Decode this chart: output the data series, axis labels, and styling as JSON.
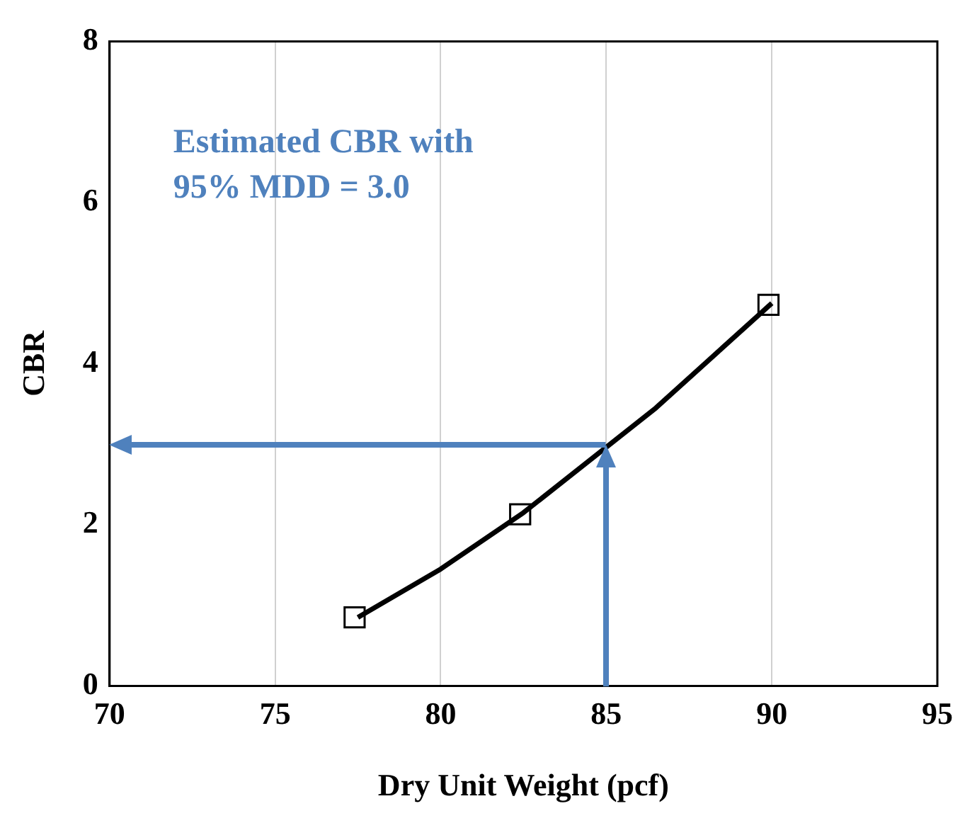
{
  "chart_data": {
    "type": "scatter",
    "xlabel": "Dry Unit Weight (pcf)",
    "ylabel": "CBR",
    "annotations": [
      "Estimated CBR with 95% MDD = 3.0"
    ],
    "ref_lines": [
      {
        "axis": "x",
        "value": 85,
        "color": "#4f81bd"
      },
      {
        "axis": "y",
        "value": 3,
        "color": "#4f81bd"
      }
    ],
    "xlim": [
      70,
      95
    ],
    "xticks": [
      70,
      75,
      80,
      85,
      90,
      95
    ],
    "ylim": [
      0,
      8
    ],
    "yticks": [
      0,
      2,
      4,
      6,
      8
    ],
    "grid": "x",
    "series": [
      {
        "type": "line",
        "x": [
          77.5,
          80,
          82.5,
          86.5,
          90
        ],
        "values": [
          0.85,
          1.45,
          2.15,
          3.45,
          4.75
        ],
        "color": "#000000",
        "marker": "none"
      },
      {
        "type": "scatter",
        "x": [
          77.4,
          82.4,
          89.9
        ],
        "values": [
          0.85,
          2.13,
          4.73
        ],
        "color": "#000000",
        "marker": "square"
      }
    ]
  }
}
